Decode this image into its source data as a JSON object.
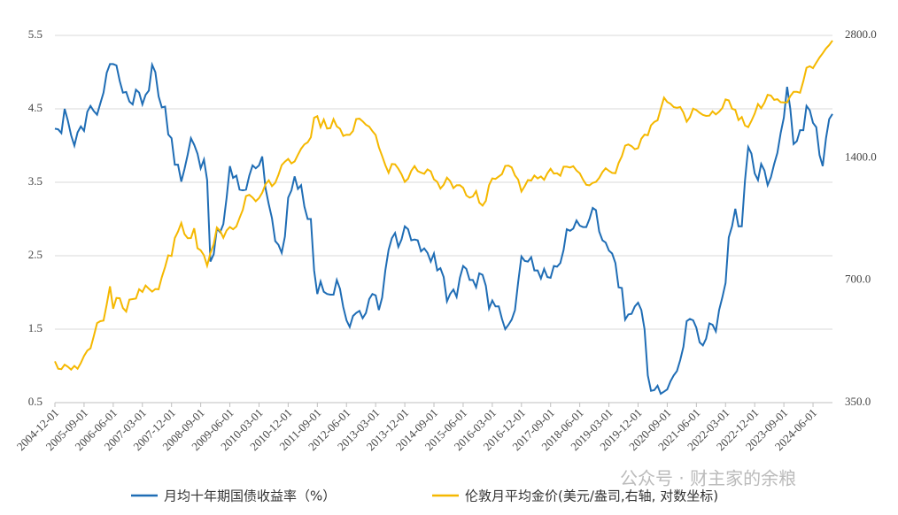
{
  "chart_data": {
    "type": "line",
    "watermark": "公众号 · 财主家的余粮",
    "x": [
      "2004-12-01",
      "2005-01-01",
      "2005-02-01",
      "2005-03-01",
      "2005-04-01",
      "2005-05-01",
      "2005-06-01",
      "2005-07-01",
      "2005-08-01",
      "2005-09-01",
      "2005-10-01",
      "2005-11-01",
      "2005-12-01",
      "2006-01-01",
      "2006-02-01",
      "2006-03-01",
      "2006-04-01",
      "2006-05-01",
      "2006-06-01",
      "2006-07-01",
      "2006-08-01",
      "2006-09-01",
      "2006-10-01",
      "2006-11-01",
      "2006-12-01",
      "2007-01-01",
      "2007-02-01",
      "2007-03-01",
      "2007-04-01",
      "2007-05-01",
      "2007-06-01",
      "2007-07-01",
      "2007-08-01",
      "2007-09-01",
      "2007-10-01",
      "2007-11-01",
      "2007-12-01",
      "2008-01-01",
      "2008-02-01",
      "2008-03-01",
      "2008-04-01",
      "2008-05-01",
      "2008-06-01",
      "2008-07-01",
      "2008-08-01",
      "2008-09-01",
      "2008-10-01",
      "2008-11-01",
      "2008-12-01",
      "2009-01-01",
      "2009-02-01",
      "2009-03-01",
      "2009-04-01",
      "2009-05-01",
      "2009-06-01",
      "2009-07-01",
      "2009-08-01",
      "2009-09-01",
      "2009-10-01",
      "2009-11-01",
      "2009-12-01",
      "2010-01-01",
      "2010-02-01",
      "2010-03-01",
      "2010-04-01",
      "2010-05-01",
      "2010-06-01",
      "2010-07-01",
      "2010-08-01",
      "2010-09-01",
      "2010-10-01",
      "2010-11-01",
      "2010-12-01",
      "2011-01-01",
      "2011-02-01",
      "2011-03-01",
      "2011-04-01",
      "2011-05-01",
      "2011-06-01",
      "2011-07-01",
      "2011-08-01",
      "2011-09-01",
      "2011-10-01",
      "2011-11-01",
      "2011-12-01",
      "2012-01-01",
      "2012-02-01",
      "2012-03-01",
      "2012-04-01",
      "2012-05-01",
      "2012-06-01",
      "2012-07-01",
      "2012-08-01",
      "2012-09-01",
      "2012-10-01",
      "2012-11-01",
      "2012-12-01",
      "2013-01-01",
      "2013-02-01",
      "2013-03-01",
      "2013-04-01",
      "2013-05-01",
      "2013-06-01",
      "2013-07-01",
      "2013-08-01",
      "2013-09-01",
      "2013-10-01",
      "2013-11-01",
      "2013-12-01",
      "2014-01-01",
      "2014-02-01",
      "2014-03-01",
      "2014-04-01",
      "2014-05-01",
      "2014-06-01",
      "2014-07-01",
      "2014-08-01",
      "2014-09-01",
      "2014-10-01",
      "2014-11-01",
      "2014-12-01",
      "2015-01-01",
      "2015-02-01",
      "2015-03-01",
      "2015-04-01",
      "2015-05-01",
      "2015-06-01",
      "2015-07-01",
      "2015-08-01",
      "2015-09-01",
      "2015-10-01",
      "2015-11-01",
      "2015-12-01",
      "2016-01-01",
      "2016-02-01",
      "2016-03-01",
      "2016-04-01",
      "2016-05-01",
      "2016-06-01",
      "2016-07-01",
      "2016-08-01",
      "2016-09-01",
      "2016-10-01",
      "2016-11-01",
      "2016-12-01",
      "2017-01-01",
      "2017-02-01",
      "2017-03-01",
      "2017-04-01",
      "2017-05-01",
      "2017-06-01",
      "2017-07-01",
      "2017-08-01",
      "2017-09-01",
      "2017-10-01",
      "2017-11-01",
      "2017-12-01",
      "2018-01-01",
      "2018-02-01",
      "2018-03-01",
      "2018-04-01",
      "2018-05-01",
      "2018-06-01",
      "2018-07-01",
      "2018-08-01",
      "2018-09-01",
      "2018-10-01",
      "2018-11-01",
      "2018-12-01",
      "2019-01-01",
      "2019-02-01",
      "2019-03-01",
      "2019-04-01",
      "2019-05-01",
      "2019-06-01",
      "2019-07-01",
      "2019-08-01",
      "2019-09-01",
      "2019-10-01",
      "2019-11-01",
      "2019-12-01",
      "2020-01-01",
      "2020-02-01",
      "2020-03-01",
      "2020-04-01",
      "2020-05-01",
      "2020-06-01",
      "2020-07-01",
      "2020-08-01",
      "2020-09-01",
      "2020-10-01",
      "2020-11-01",
      "2020-12-01",
      "2021-01-01",
      "2021-02-01",
      "2021-03-01",
      "2021-04-01",
      "2021-05-01",
      "2021-06-01",
      "2021-07-01",
      "2021-08-01",
      "2021-09-01",
      "2021-10-01",
      "2021-11-01",
      "2021-12-01",
      "2022-01-01",
      "2022-02-01",
      "2022-03-01",
      "2022-04-01",
      "2022-05-01",
      "2022-06-01",
      "2022-07-01",
      "2022-08-01",
      "2022-09-01",
      "2022-10-01",
      "2022-11-01",
      "2022-12-01",
      "2023-01-01",
      "2023-02-01",
      "2023-03-01",
      "2023-04-01",
      "2023-05-01",
      "2023-06-01",
      "2023-07-01",
      "2023-08-01",
      "2023-09-01",
      "2023-10-01",
      "2023-11-01",
      "2023-12-01",
      "2024-01-01",
      "2024-02-01",
      "2024-03-01",
      "2024-04-01",
      "2024-05-01",
      "2024-06-01",
      "2024-07-01",
      "2024-08-01",
      "2024-09-01",
      "2024-10-01",
      "2024-11-01",
      "2024-12-01"
    ],
    "xlim": [
      "2004-12-01",
      "2024-12-01"
    ],
    "xticks": [
      "2004-12-01",
      "2005-09-01",
      "2006-06-01",
      "2007-03-01",
      "2007-12-01",
      "2008-09-01",
      "2009-06-01",
      "2010-03-01",
      "2010-12-01",
      "2011-09-01",
      "2012-06-01",
      "2013-03-01",
      "2013-12-01",
      "2014-09-01",
      "2015-06-01",
      "2016-03-01",
      "2016-12-01",
      "2017-09-01",
      "2018-06-01",
      "2019-03-01",
      "2019-12-01",
      "2020-09-01",
      "2021-06-01",
      "2022-03-01",
      "2022-12-01",
      "2023-09-01",
      "2024-06-01"
    ],
    "ylim": [
      0.5,
      5.5
    ],
    "yticks": [
      0.5,
      1.5,
      2.5,
      3.5,
      4.5,
      5.5
    ],
    "y2lim": [
      350,
      2800
    ],
    "y2ticks": [
      {
        "value": 350,
        "label": "350.0"
      },
      {
        "value": 700,
        "label": "700.0"
      },
      {
        "value": 1400,
        "label": "1400.0"
      },
      {
        "value": 2800,
        "label": "2800.0"
      }
    ],
    "y2log": true,
    "grid": true,
    "legend": "bottom",
    "series": [
      {
        "name": "月均十年期国债收益率（%）",
        "color": "#1f6db5",
        "values": [
          4.23,
          4.22,
          4.17,
          4.5,
          4.34,
          4.14,
          4.0,
          4.18,
          4.26,
          4.2,
          4.46,
          4.54,
          4.47,
          4.42,
          4.57,
          4.72,
          4.99,
          5.11,
          5.11,
          5.09,
          4.88,
          4.72,
          4.73,
          4.6,
          4.56,
          4.76,
          4.72,
          4.56,
          4.69,
          4.75,
          5.1,
          5.0,
          4.67,
          4.52,
          4.53,
          4.15,
          4.1,
          3.74,
          3.74,
          3.51,
          3.68,
          3.88,
          4.1,
          4.01,
          3.89,
          3.69,
          3.81,
          3.53,
          2.42,
          2.52,
          2.87,
          2.82,
          2.93,
          3.29,
          3.72,
          3.56,
          3.59,
          3.4,
          3.39,
          3.4,
          3.59,
          3.73,
          3.69,
          3.73,
          3.85,
          3.42,
          3.2,
          3.01,
          2.7,
          2.65,
          2.54,
          2.76,
          3.29,
          3.39,
          3.58,
          3.41,
          3.46,
          3.17,
          3.0,
          3.0,
          2.3,
          1.98,
          2.15,
          2.01,
          1.98,
          1.97,
          1.97,
          2.17,
          2.05,
          1.8,
          1.62,
          1.53,
          1.68,
          1.72,
          1.75,
          1.65,
          1.72,
          1.91,
          1.98,
          1.96,
          1.76,
          1.93,
          2.3,
          2.58,
          2.74,
          2.81,
          2.62,
          2.72,
          2.9,
          2.86,
          2.71,
          2.72,
          2.71,
          2.56,
          2.6,
          2.54,
          2.42,
          2.53,
          2.3,
          2.33,
          2.21,
          1.88,
          1.98,
          2.04,
          1.94,
          2.2,
          2.36,
          2.32,
          2.17,
          2.17,
          2.07,
          2.26,
          2.24,
          2.09,
          1.78,
          1.89,
          1.81,
          1.81,
          1.64,
          1.5,
          1.56,
          1.63,
          1.76,
          2.14,
          2.49,
          2.43,
          2.42,
          2.48,
          2.3,
          2.3,
          2.19,
          2.32,
          2.21,
          2.2,
          2.36,
          2.35,
          2.4,
          2.58,
          2.86,
          2.84,
          2.87,
          2.98,
          2.91,
          2.89,
          2.89,
          3.0,
          3.15,
          3.12,
          2.83,
          2.71,
          2.68,
          2.57,
          2.53,
          2.4,
          2.07,
          2.06,
          1.63,
          1.7,
          1.71,
          1.81,
          1.86,
          1.76,
          1.5,
          0.87,
          0.66,
          0.67,
          0.73,
          0.62,
          0.65,
          0.68,
          0.79,
          0.87,
          0.93,
          1.08,
          1.26,
          1.61,
          1.64,
          1.62,
          1.52,
          1.32,
          1.28,
          1.37,
          1.58,
          1.56,
          1.47,
          1.76,
          1.93,
          2.13,
          2.75,
          2.9,
          3.14,
          2.9,
          2.9,
          3.52,
          3.98,
          3.89,
          3.62,
          3.53,
          3.75,
          3.66,
          3.46,
          3.57,
          3.75,
          3.9,
          4.17,
          4.38,
          4.8,
          4.5,
          4.02,
          4.06,
          4.21,
          4.21,
          4.54,
          4.48,
          4.31,
          4.25,
          3.87,
          3.72,
          4.1,
          4.36,
          4.43
        ]
      },
      {
        "name": "伦敦月平均金价(美元/盎司,右轴, 对数坐标)",
        "color": "#f5b800",
        "axis": "y2",
        "values": [
          442,
          424,
          423,
          434,
          429,
          422,
          431,
          424,
          438,
          456,
          470,
          476,
          510,
          549,
          555,
          557,
          610,
          676,
          596,
          633,
          632,
          598,
          586,
          627,
          629,
          631,
          665,
          655,
          679,
          667,
          656,
          666,
          665,
          712,
          754,
          806,
          803,
          889,
          922,
          968,
          909,
          888,
          889,
          939,
          839,
          829,
          806,
          760,
          816,
          858,
          943,
          925,
          890,
          928,
          946,
          934,
          949,
          996,
          1043,
          1127,
          1135,
          1118,
          1095,
          1114,
          1149,
          1205,
          1232,
          1193,
          1215,
          1271,
          1343,
          1370,
          1391,
          1356,
          1372,
          1424,
          1474,
          1510,
          1528,
          1573,
          1756,
          1772,
          1665,
          1739,
          1652,
          1656,
          1742,
          1673,
          1650,
          1585,
          1596,
          1594,
          1630,
          1744,
          1747,
          1721,
          1688,
          1670,
          1628,
          1593,
          1487,
          1414,
          1343,
          1286,
          1352,
          1349,
          1316,
          1275,
          1222,
          1244,
          1300,
          1336,
          1299,
          1287,
          1279,
          1311,
          1296,
          1239,
          1222,
          1176,
          1202,
          1251,
          1227,
          1179,
          1198,
          1199,
          1181,
          1131,
          1117,
          1125,
          1159,
          1086,
          1068,
          1097,
          1199,
          1246,
          1242,
          1260,
          1276,
          1337,
          1340,
          1326,
          1267,
          1238,
          1157,
          1192,
          1234,
          1231,
          1266,
          1246,
          1260,
          1236,
          1283,
          1315,
          1280,
          1283,
          1265,
          1331,
          1331,
          1325,
          1335,
          1303,
          1282,
          1238,
          1202,
          1198,
          1215,
          1221,
          1250,
          1291,
          1320,
          1300,
          1285,
          1283,
          1359,
          1413,
          1500,
          1510,
          1495,
          1470,
          1479,
          1560,
          1597,
          1591,
          1683,
          1715,
          1732,
          1847,
          1969,
          1921,
          1901,
          1866,
          1858,
          1867,
          1808,
          1718,
          1761,
          1850,
          1834,
          1807,
          1785,
          1775,
          1777,
          1821,
          1790,
          1817,
          1856,
          1948,
          1937,
          1849,
          1836,
          1733,
          1764,
          1681,
          1665,
          1726,
          1798,
          1898,
          1855,
          1912,
          2000,
          1992,
          1943,
          1951,
          1918,
          1916,
          1916,
          1985,
          2034,
          2034,
          2024,
          2161,
          2331,
          2351,
          2326,
          2398,
          2470,
          2530,
          2600,
          2650,
          2720
        ]
      }
    ]
  }
}
